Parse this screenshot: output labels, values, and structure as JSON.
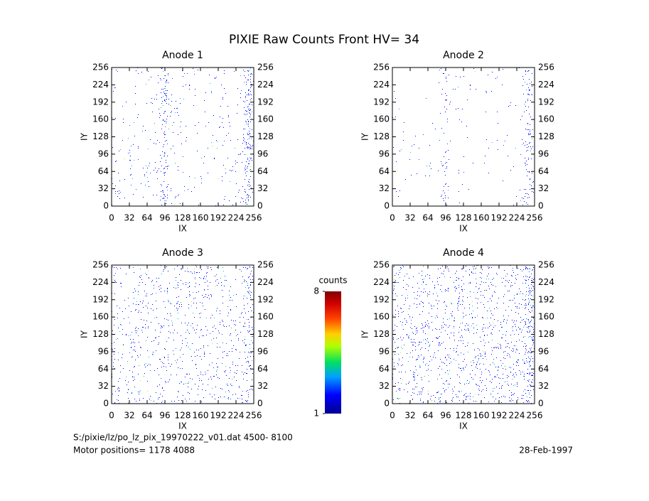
{
  "title": "PIXIE Raw Counts Front HV= 34",
  "chart_data": [
    {
      "type": "heatmap",
      "title": "Anode 1",
      "xlabel": "IX",
      "ylabel": "IY",
      "xlim": [
        0,
        256
      ],
      "ylim": [
        0,
        256
      ],
      "y2lim": [
        0,
        256
      ],
      "xticks": [
        0,
        32,
        64,
        96,
        128,
        160,
        192,
        224,
        256
      ],
      "yticks": [
        0,
        32,
        64,
        96,
        128,
        160,
        192,
        224,
        256
      ],
      "y2ticks": [
        0,
        32,
        64,
        96,
        128,
        160,
        192,
        224,
        256
      ]
    },
    {
      "type": "heatmap",
      "title": "Anode 2",
      "xlabel": "IX",
      "ylabel": "IY",
      "xlim": [
        0,
        256
      ],
      "ylim": [
        0,
        256
      ],
      "y2lim": [
        0,
        256
      ],
      "xticks": [
        0,
        32,
        64,
        96,
        128,
        160,
        192,
        224,
        256
      ],
      "yticks": [
        0,
        32,
        64,
        96,
        128,
        160,
        192,
        224,
        256
      ],
      "y2ticks": [
        0,
        32,
        64,
        96,
        128,
        160,
        192,
        224,
        256
      ]
    },
    {
      "type": "heatmap",
      "title": "Anode 3",
      "xlabel": "IX",
      "ylabel": "IY",
      "xlim": [
        0,
        256
      ],
      "ylim": [
        0,
        256
      ],
      "y2lim": [
        0,
        256
      ],
      "xticks": [
        0,
        32,
        64,
        96,
        128,
        160,
        192,
        224,
        256
      ],
      "yticks": [
        0,
        32,
        64,
        96,
        128,
        160,
        192,
        224,
        256
      ],
      "y2ticks": [
        0,
        32,
        64,
        96,
        128,
        160,
        192,
        224,
        256
      ]
    },
    {
      "type": "heatmap",
      "title": "Anode 4",
      "xlabel": "IX",
      "ylabel": "IY",
      "xlim": [
        0,
        256
      ],
      "ylim": [
        0,
        256
      ],
      "y2lim": [
        0,
        256
      ],
      "xticks": [
        0,
        32,
        64,
        96,
        128,
        160,
        192,
        224,
        256
      ],
      "yticks": [
        0,
        32,
        64,
        96,
        128,
        160,
        192,
        224,
        256
      ],
      "y2ticks": [
        0,
        32,
        64,
        96,
        128,
        160,
        192,
        224,
        256
      ]
    }
  ],
  "colorbar": {
    "label": "counts",
    "lim": [
      1,
      8
    ],
    "ticks": [
      1,
      8
    ]
  },
  "footer": {
    "file": "S:/pixie/lz/po_lz_pix_19970222_v01.dat   4500- 8100",
    "motor": "Motor positions= 1178 4088",
    "date": "28-Feb-1997"
  }
}
